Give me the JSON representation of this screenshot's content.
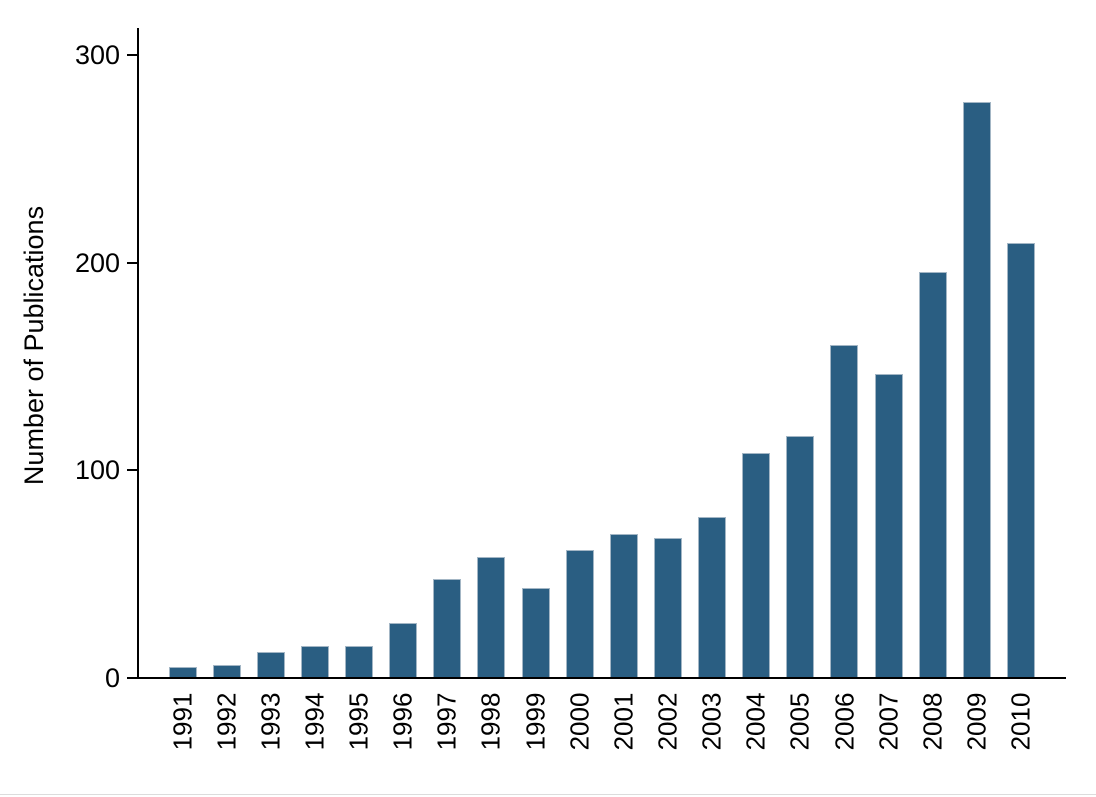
{
  "chart_data": {
    "type": "bar",
    "title": "",
    "xlabel": "",
    "ylabel": "Number of Publications",
    "categories": [
      "1991",
      "1992",
      "1993",
      "1994",
      "1995",
      "1996",
      "1997",
      "1998",
      "1999",
      "2000",
      "2001",
      "2002",
      "2003",
      "2004",
      "2005",
      "2006",
      "2007",
      "2008",
      "2009",
      "2010"
    ],
    "values": [
      5,
      6,
      12,
      15,
      15,
      26,
      47,
      58,
      43,
      61,
      69,
      67,
      77,
      108,
      116,
      160,
      146,
      195,
      277,
      209
    ],
    "ylim": [
      0,
      300
    ],
    "yticks": [
      0,
      100,
      200,
      300
    ],
    "grid": false,
    "legend": "none",
    "x_tick_label_rotation": -90,
    "colors": {
      "bar_fill": "#2a5e82",
      "bar_outline": "#a3b6c5",
      "axis": "#000000",
      "text": "#000000",
      "background": "#ffffff",
      "bottom_edge": "#dcdcdc"
    }
  }
}
